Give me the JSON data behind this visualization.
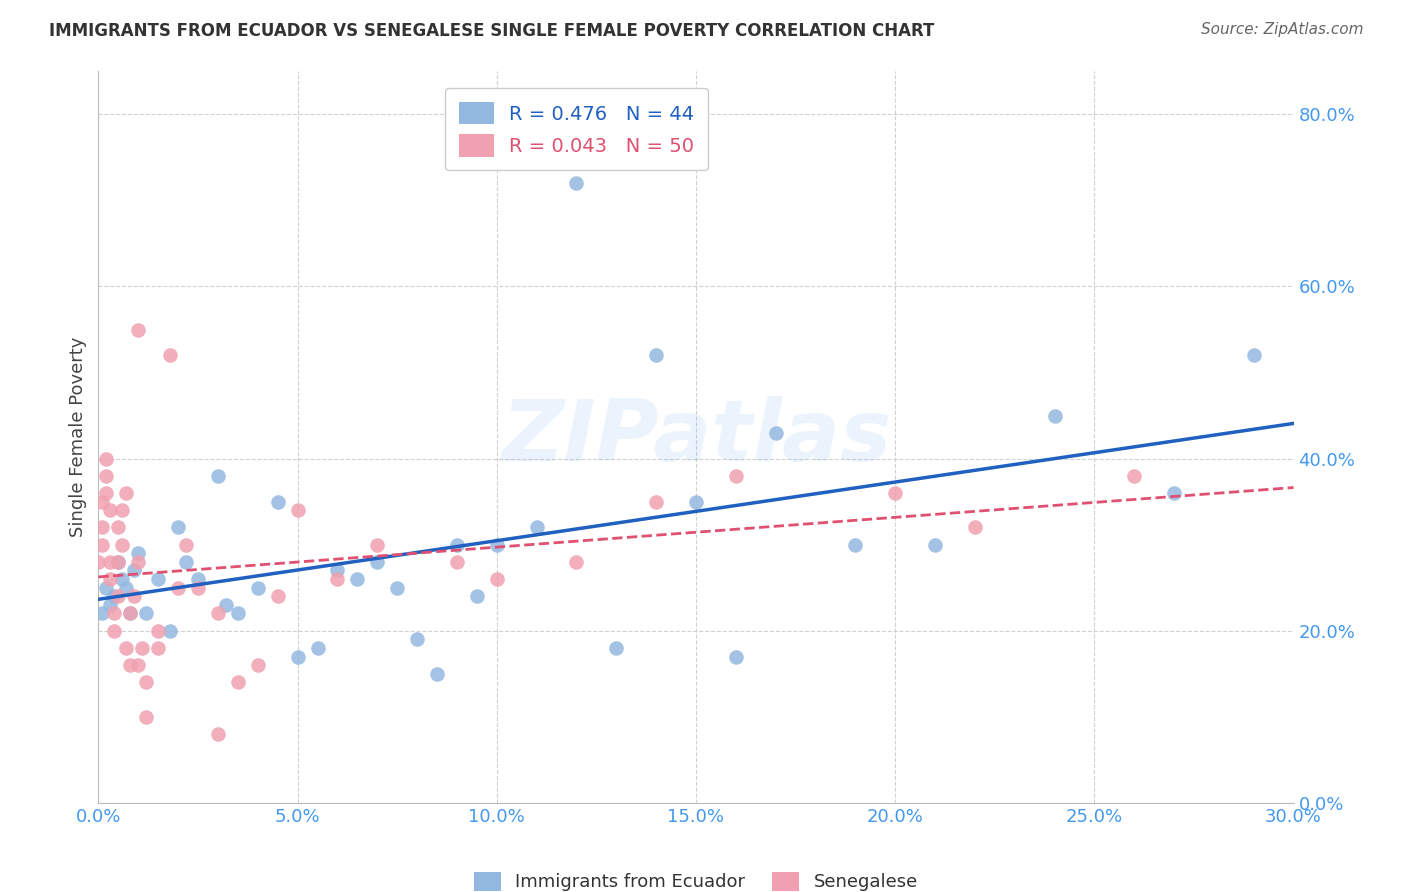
{
  "title": "IMMIGRANTS FROM ECUADOR VS SENEGALESE SINGLE FEMALE POVERTY CORRELATION CHART",
  "source": "Source: ZipAtlas.com",
  "xlabel_label": "Immigrants from Ecuador",
  "ylabel_label": "Single Female Poverty",
  "senegal_label": "Senegalese",
  "x_min": 0.0,
  "x_max": 0.3,
  "y_min": 0.0,
  "y_max": 0.85,
  "x_ticks": [
    0.0,
    0.05,
    0.1,
    0.15,
    0.2,
    0.25,
    0.3
  ],
  "y_ticks": [
    0.0,
    0.2,
    0.4,
    0.6,
    0.8
  ],
  "ecuador_R": 0.476,
  "ecuador_N": 44,
  "senegal_R": 0.043,
  "senegal_N": 50,
  "ecuador_color": "#93b8e0",
  "senegal_color": "#f0a0b0",
  "ecuador_line_color": "#2060c0",
  "senegal_line_color": "#e05070",
  "watermark": "ZIPatlas",
  "background_color": "#ffffff",
  "tick_color": "#4499ee",
  "title_color": "#333333",
  "source_color": "#666666",
  "ylabel_color": "#444444",
  "ecuador_x": [
    0.001,
    0.002,
    0.003,
    0.004,
    0.005,
    0.006,
    0.007,
    0.008,
    0.009,
    0.01,
    0.012,
    0.015,
    0.018,
    0.02,
    0.022,
    0.025,
    0.03,
    0.032,
    0.035,
    0.04,
    0.045,
    0.05,
    0.055,
    0.06,
    0.065,
    0.07,
    0.075,
    0.08,
    0.085,
    0.09,
    0.095,
    0.1,
    0.11,
    0.12,
    0.13,
    0.14,
    0.15,
    0.16,
    0.17,
    0.19,
    0.21,
    0.24,
    0.27,
    0.29
  ],
  "ecuador_y": [
    0.22,
    0.25,
    0.23,
    0.24,
    0.28,
    0.26,
    0.25,
    0.22,
    0.27,
    0.29,
    0.22,
    0.26,
    0.2,
    0.32,
    0.28,
    0.26,
    0.38,
    0.23,
    0.22,
    0.25,
    0.35,
    0.17,
    0.18,
    0.27,
    0.26,
    0.28,
    0.25,
    0.19,
    0.15,
    0.3,
    0.24,
    0.3,
    0.32,
    0.72,
    0.18,
    0.52,
    0.35,
    0.17,
    0.43,
    0.3,
    0.3,
    0.45,
    0.36,
    0.52
  ],
  "senegal_x": [
    0.0,
    0.001,
    0.001,
    0.001,
    0.002,
    0.002,
    0.002,
    0.003,
    0.003,
    0.003,
    0.004,
    0.004,
    0.005,
    0.005,
    0.005,
    0.006,
    0.006,
    0.007,
    0.007,
    0.008,
    0.008,
    0.009,
    0.01,
    0.01,
    0.011,
    0.012,
    0.012,
    0.015,
    0.015,
    0.018,
    0.02,
    0.022,
    0.025,
    0.03,
    0.03,
    0.035,
    0.04,
    0.045,
    0.05,
    0.06,
    0.07,
    0.09,
    0.1,
    0.12,
    0.14,
    0.16,
    0.2,
    0.22,
    0.26,
    0.01
  ],
  "senegal_y": [
    0.28,
    0.32,
    0.3,
    0.35,
    0.36,
    0.38,
    0.4,
    0.34,
    0.26,
    0.28,
    0.22,
    0.2,
    0.32,
    0.28,
    0.24,
    0.3,
    0.34,
    0.36,
    0.18,
    0.16,
    0.22,
    0.24,
    0.28,
    0.16,
    0.18,
    0.14,
    0.1,
    0.18,
    0.2,
    0.52,
    0.25,
    0.3,
    0.25,
    0.22,
    0.08,
    0.14,
    0.16,
    0.24,
    0.34,
    0.26,
    0.3,
    0.28,
    0.26,
    0.28,
    0.35,
    0.38,
    0.36,
    0.32,
    0.38,
    0.55
  ]
}
